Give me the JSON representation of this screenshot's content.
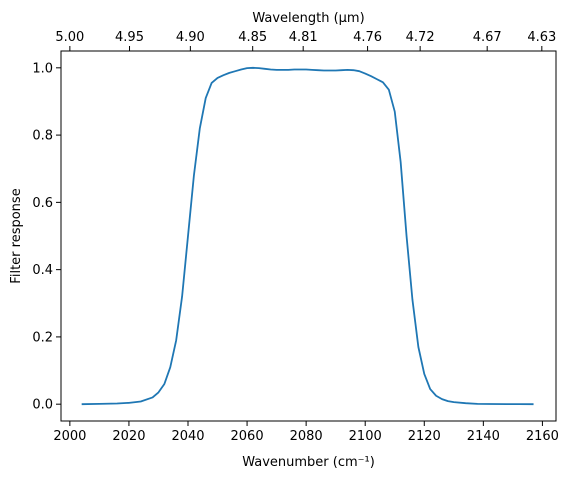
{
  "chart_data": {
    "type": "line",
    "title": "",
    "xlabel": "Wavenumber (cm⁻¹)",
    "ylabel": "Filter response",
    "x2label": "Wavelength (μm)",
    "xlim": [
      1997,
      2164.6
    ],
    "ylim": [
      -0.05,
      1.05
    ],
    "xticks": [
      2000,
      2020,
      2040,
      2060,
      2080,
      2100,
      2120,
      2140,
      2160
    ],
    "yticks": [
      0.0,
      0.2,
      0.4,
      0.6,
      0.8,
      1.0
    ],
    "x2ticks": [
      {
        "at": 2000.0,
        "label": "5.00"
      },
      {
        "at": 2020.2,
        "label": "4.95"
      },
      {
        "at": 2040.8,
        "label": "4.90"
      },
      {
        "at": 2061.9,
        "label": "4.85"
      },
      {
        "at": 2079.0,
        "label": "4.81"
      },
      {
        "at": 2100.8,
        "label": "4.76"
      },
      {
        "at": 2118.6,
        "label": "4.72"
      },
      {
        "at": 2141.3,
        "label": "4.67"
      },
      {
        "at": 2159.8,
        "label": "4.63"
      }
    ],
    "grid": false,
    "line_color": "#1f77b4",
    "series": [
      {
        "x": [
          2004,
          2010,
          2016,
          2020,
          2024,
          2028,
          2030,
          2032,
          2034,
          2036,
          2038,
          2040,
          2042,
          2044,
          2046,
          2048,
          2050,
          2052,
          2054,
          2056,
          2058,
          2060,
          2062,
          2064,
          2066,
          2068,
          2070,
          2072,
          2074,
          2076,
          2078,
          2080,
          2082,
          2084,
          2086,
          2088,
          2090,
          2092,
          2094,
          2096,
          2098,
          2100,
          2102,
          2104,
          2106,
          2108,
          2110,
          2112,
          2114,
          2116,
          2118,
          2120,
          2122,
          2124,
          2126,
          2128,
          2130,
          2134,
          2138,
          2142,
          2148,
          2152,
          2157
        ],
        "y": [
          0.0,
          0.001,
          0.002,
          0.004,
          0.008,
          0.02,
          0.035,
          0.06,
          0.11,
          0.19,
          0.32,
          0.5,
          0.68,
          0.82,
          0.91,
          0.955,
          0.97,
          0.978,
          0.985,
          0.99,
          0.995,
          0.999,
          1.0,
          0.999,
          0.997,
          0.995,
          0.994,
          0.994,
          0.994,
          0.995,
          0.995,
          0.995,
          0.994,
          0.993,
          0.992,
          0.992,
          0.992,
          0.993,
          0.994,
          0.993,
          0.99,
          0.983,
          0.975,
          0.966,
          0.957,
          0.935,
          0.87,
          0.72,
          0.5,
          0.31,
          0.17,
          0.09,
          0.045,
          0.025,
          0.015,
          0.009,
          0.006,
          0.003,
          0.001,
          0.0005,
          0.0002,
          0.0001,
          0.0
        ]
      }
    ]
  }
}
